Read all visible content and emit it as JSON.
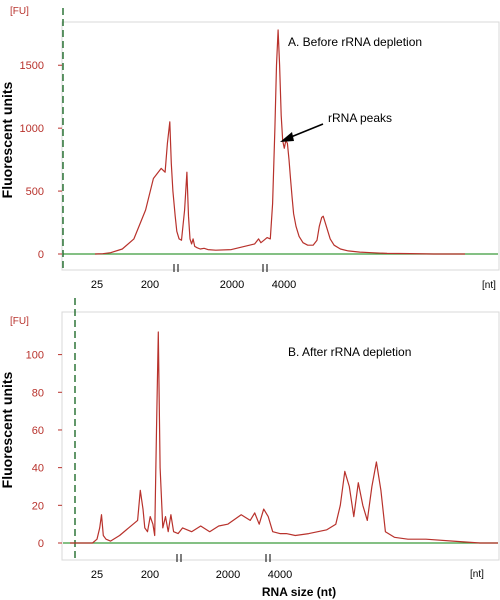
{
  "chart_data": [
    {
      "type": "line",
      "title": "A. Before rRNA depletion",
      "ylabel": "Fluorescent units",
      "y_unit": "[FU]",
      "x_unit": "[nt]",
      "yticks": [
        0,
        500,
        1000,
        1500
      ],
      "ylim": [
        -80,
        1800
      ],
      "xticks": [
        "25",
        "200",
        "2000",
        "4000"
      ],
      "annotation": "rRNA peaks",
      "colors": {
        "trace": "#b8322c",
        "baseline": "#3a9a3a",
        "marker": "#1f6b2a"
      },
      "series": [
        {
          "x": [
            25,
            35,
            45,
            60,
            75,
            90,
            100,
            110,
            115,
            118,
            121,
            123,
            125,
            128,
            130,
            133,
            136,
            140,
            143,
            145,
            147,
            149,
            151,
            153,
            156,
            160,
            165,
            170,
            180,
            200,
            230,
            235,
            238,
            242,
            246,
            250,
            253,
            256,
            258,
            260,
            262,
            264,
            266,
            268,
            270,
            272,
            274,
            276,
            278,
            280,
            283,
            287,
            292,
            298,
            305,
            310,
            313,
            316,
            318,
            320,
            323,
            327,
            332,
            340,
            350,
            365,
            380,
            400,
            430,
            460,
            500
          ],
          "y": [
            0,
            2,
            10,
            40,
            120,
            350,
            600,
            680,
            650,
            880,
            1050,
            720,
            500,
            300,
            180,
            120,
            110,
            350,
            650,
            300,
            120,
            80,
            120,
            60,
            50,
            40,
            45,
            35,
            30,
            35,
            80,
            120,
            90,
            110,
            130,
            120,
            400,
            1000,
            1500,
            1780,
            1500,
            1100,
            900,
            840,
            900,
            880,
            750,
            600,
            450,
            320,
            220,
            140,
            90,
            70,
            70,
            110,
            220,
            290,
            300,
            260,
            200,
            120,
            70,
            40,
            25,
            15,
            10,
            5,
            3,
            0,
            0
          ]
        }
      ]
    },
    {
      "type": "line",
      "title": "B. After rRNA depletion",
      "ylabel": "Fluorescent units",
      "xlabel": "RNA size (nt)",
      "y_unit": "[FU]",
      "x_unit": "[nt]",
      "yticks": [
        0,
        20,
        40,
        60,
        80,
        100
      ],
      "ylim": [
        -5,
        115
      ],
      "xticks": [
        "25",
        "200",
        "2000",
        "4000"
      ],
      "colors": {
        "trace": "#b8322c",
        "baseline": "#3a9a3a",
        "marker": "#1f6b2a"
      },
      "series": [
        {
          "x": [
            25,
            50,
            55,
            58,
            60,
            62,
            65,
            70,
            80,
            90,
            100,
            103,
            106,
            108,
            111,
            114,
            117,
            119,
            121,
            123,
            125,
            128,
            131,
            134,
            137,
            140,
            145,
            150,
            160,
            170,
            180,
            190,
            200,
            215,
            225,
            230,
            235,
            240,
            245,
            250,
            258,
            265,
            275,
            290,
            310,
            320,
            325,
            330,
            335,
            340,
            345,
            350,
            355,
            360,
            365,
            370,
            375,
            385,
            400,
            420,
            450,
            480,
            500
          ],
          "y": [
            0,
            0,
            2,
            8,
            15,
            4,
            2,
            1,
            4,
            8,
            12,
            28,
            18,
            8,
            6,
            14,
            10,
            4,
            60,
            112,
            40,
            8,
            14,
            6,
            15,
            6,
            5,
            8,
            6,
            9,
            6,
            9,
            10,
            15,
            12,
            16,
            10,
            18,
            14,
            6,
            5,
            5,
            4,
            5,
            7,
            10,
            20,
            38,
            30,
            14,
            32,
            20,
            12,
            30,
            43,
            28,
            6,
            3,
            2,
            2,
            1,
            0,
            0
          ]
        }
      ]
    }
  ]
}
